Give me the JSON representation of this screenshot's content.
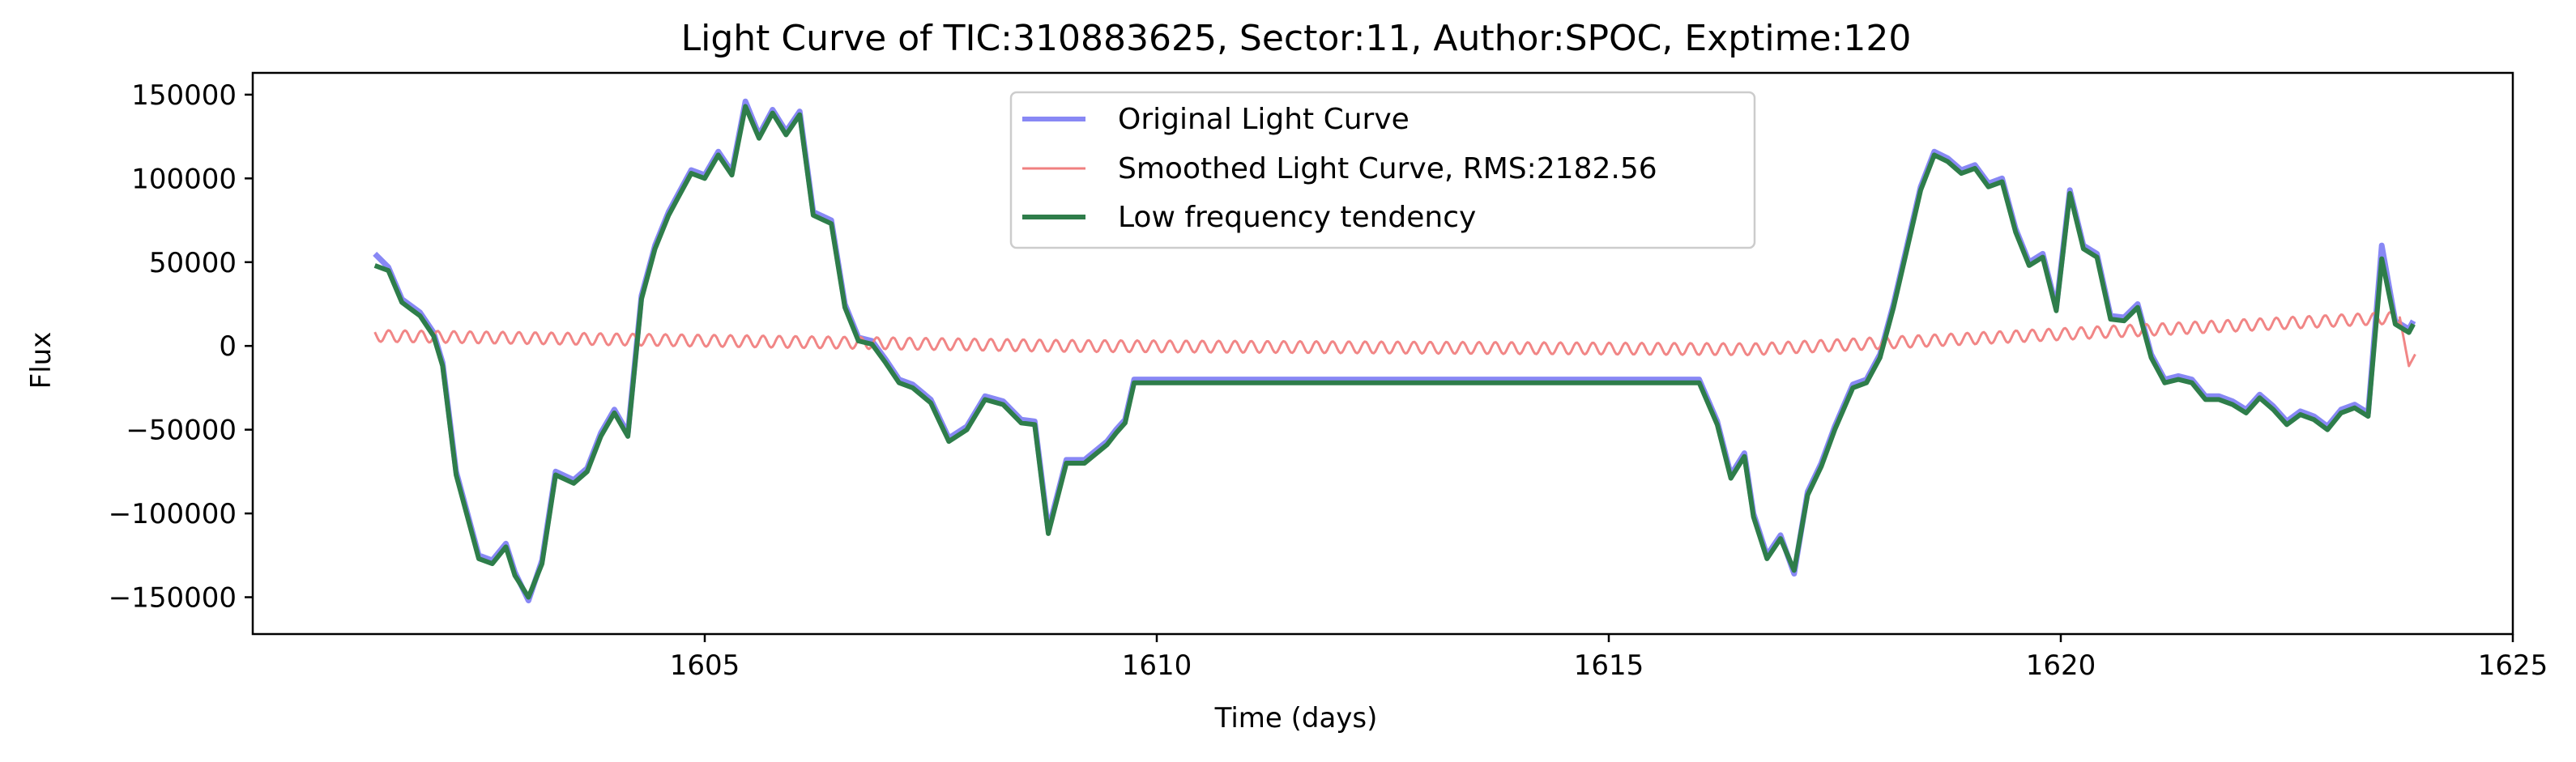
{
  "chart_data": {
    "type": "line",
    "title": "Light Curve of TIC:310883625, Sector:11, Author:SPOC, Exptime:120",
    "xlabel": "Time (days)",
    "ylabel": "Flux",
    "xlim": [
      1600.0,
      1625.0
    ],
    "ylim": [
      -172000,
      163000
    ],
    "xticks": [
      1605,
      1610,
      1615,
      1620,
      1625
    ],
    "yticks": [
      -150000,
      -100000,
      -50000,
      0,
      50000,
      100000,
      150000
    ],
    "xtick_labels": [
      "1605",
      "1610",
      "1615",
      "1620",
      "1625"
    ],
    "ytick_labels": [
      "−150000",
      "−100000",
      "−50000",
      "0",
      "50000",
      "100000",
      "150000"
    ],
    "grid": false,
    "legend_position": "top-center",
    "colors": {
      "original": "#7b7bf4",
      "smoothed": "#f08080",
      "trend": "#2e7d4a"
    },
    "series": [
      {
        "key": "original",
        "name": "Original Light Curve",
        "x": [
          1601.35,
          1601.5,
          1601.65,
          1601.85,
          1602.0,
          1602.1,
          1602.25,
          1602.5,
          1602.65,
          1602.8,
          1602.9,
          1603.05,
          1603.2,
          1603.35,
          1603.55,
          1603.7,
          1603.85,
          1604.0,
          1604.15,
          1604.3,
          1604.45,
          1604.6,
          1604.7,
          1604.85,
          1605.0,
          1605.15,
          1605.3,
          1605.45,
          1605.6,
          1605.75,
          1605.9,
          1606.05,
          1606.2,
          1606.4,
          1606.55,
          1606.7,
          1606.85,
          1607.0,
          1607.15,
          1607.3,
          1607.5,
          1607.7,
          1607.9,
          1608.1,
          1608.3,
          1608.5,
          1608.65,
          1608.8,
          1609.0,
          1609.2,
          1609.45,
          1609.55,
          1609.65,
          1609.75,
          1616.0,
          1616.2,
          1616.35,
          1616.5,
          1616.6,
          1616.75,
          1616.9,
          1617.05,
          1617.2,
          1617.35,
          1617.5,
          1617.7,
          1617.85,
          1618.0,
          1618.15,
          1618.3,
          1618.45,
          1618.6,
          1618.75,
          1618.9,
          1619.05,
          1619.2,
          1619.35,
          1619.5,
          1619.65,
          1619.8,
          1619.95,
          1620.1,
          1620.25,
          1620.4,
          1620.55,
          1620.7,
          1620.85,
          1621.0,
          1621.15,
          1621.3,
          1621.45,
          1621.6,
          1621.75,
          1621.9,
          1622.05,
          1622.2,
          1622.35,
          1622.5,
          1622.65,
          1622.8,
          1622.95,
          1623.1,
          1623.25,
          1623.4,
          1623.55,
          1623.7,
          1623.85,
          1623.9
        ],
        "y": [
          55000,
          47000,
          28000,
          20000,
          8000,
          -10000,
          -75000,
          -125000,
          -128000,
          -118000,
          -135000,
          -152000,
          -128000,
          -75000,
          -80000,
          -73000,
          -52000,
          -38000,
          -52000,
          30000,
          60000,
          80000,
          90000,
          105000,
          102000,
          116000,
          104000,
          146000,
          126000,
          141000,
          128000,
          140000,
          80000,
          75000,
          25000,
          5000,
          3000,
          -8000,
          -20000,
          -23000,
          -32000,
          -55000,
          -48000,
          -30000,
          -33000,
          -44000,
          -45000,
          -110000,
          -68000,
          -68000,
          -57000,
          -50000,
          -44000,
          -20000,
          -20000,
          -45000,
          -77000,
          -64000,
          -100000,
          -125000,
          -113000,
          -136000,
          -87000,
          -70000,
          -48000,
          -23000,
          -20000,
          -5000,
          25000,
          60000,
          95000,
          116000,
          112000,
          105000,
          108000,
          97000,
          100000,
          70000,
          50000,
          55000,
          23000,
          93000,
          60000,
          55000,
          18000,
          17000,
          25000,
          -5000,
          -20000,
          -18000,
          -20000,
          -30000,
          -30000,
          -33000,
          -38000,
          -29000,
          -36000,
          -45000,
          -39000,
          -42000,
          -48000,
          -38000,
          -35000,
          -40000,
          60000,
          15000,
          10000,
          15000
        ]
      },
      {
        "key": "smoothed",
        "name": "Smoothed Light Curve, RMS:2182.56",
        "x": [
          1601.35,
          1609.0,
          1616.6,
          1623.75,
          1623.85,
          1623.92
        ],
        "y": [
          6000,
          0,
          -2000,
          17000,
          -12000,
          -5000
        ]
      },
      {
        "key": "trend",
        "name": "Low frequency tendency",
        "x": [
          1601.35,
          1601.5,
          1601.65,
          1601.85,
          1602.0,
          1602.1,
          1602.25,
          1602.5,
          1602.65,
          1602.8,
          1602.9,
          1603.05,
          1603.2,
          1603.35,
          1603.55,
          1603.7,
          1603.85,
          1604.0,
          1604.15,
          1604.3,
          1604.45,
          1604.6,
          1604.7,
          1604.85,
          1605.0,
          1605.15,
          1605.3,
          1605.45,
          1605.6,
          1605.75,
          1605.9,
          1606.05,
          1606.2,
          1606.4,
          1606.55,
          1606.7,
          1606.85,
          1607.0,
          1607.15,
          1607.3,
          1607.5,
          1607.7,
          1607.9,
          1608.1,
          1608.3,
          1608.5,
          1608.65,
          1608.8,
          1609.0,
          1609.2,
          1609.45,
          1609.55,
          1609.65,
          1609.75,
          1616.0,
          1616.2,
          1616.35,
          1616.5,
          1616.6,
          1616.75,
          1616.9,
          1617.05,
          1617.2,
          1617.35,
          1617.5,
          1617.7,
          1617.85,
          1618.0,
          1618.15,
          1618.3,
          1618.45,
          1618.6,
          1618.75,
          1618.9,
          1619.05,
          1619.2,
          1619.35,
          1619.5,
          1619.65,
          1619.8,
          1619.95,
          1620.1,
          1620.25,
          1620.4,
          1620.55,
          1620.7,
          1620.85,
          1621.0,
          1621.15,
          1621.3,
          1621.45,
          1621.6,
          1621.75,
          1621.9,
          1622.05,
          1622.2,
          1622.35,
          1622.5,
          1622.65,
          1622.8,
          1622.95,
          1623.1,
          1623.25,
          1623.4,
          1623.55,
          1623.7,
          1623.85,
          1623.9
        ],
        "y": [
          48000,
          45000,
          26000,
          18000,
          6000,
          -12000,
          -77000,
          -127000,
          -130000,
          -120000,
          -137000,
          -150000,
          -130000,
          -77000,
          -82000,
          -75000,
          -54000,
          -40000,
          -54000,
          28000,
          58000,
          78000,
          88000,
          103000,
          100000,
          114000,
          102000,
          143000,
          124000,
          139000,
          126000,
          138000,
          78000,
          73000,
          23000,
          3000,
          1000,
          -10000,
          -22000,
          -25000,
          -34000,
          -57000,
          -50000,
          -32000,
          -35000,
          -46000,
          -47000,
          -112000,
          -70000,
          -70000,
          -59000,
          -52000,
          -46000,
          -22000,
          -22000,
          -47000,
          -79000,
          -66000,
          -102000,
          -127000,
          -115000,
          -134000,
          -89000,
          -72000,
          -50000,
          -25000,
          -22000,
          -7000,
          23000,
          58000,
          93000,
          114000,
          110000,
          103000,
          106000,
          95000,
          98000,
          68000,
          48000,
          53000,
          21000,
          91000,
          58000,
          53000,
          16000,
          15000,
          23000,
          -7000,
          -22000,
          -20000,
          -22000,
          -32000,
          -32000,
          -35000,
          -40000,
          -31000,
          -38000,
          -47000,
          -41000,
          -44000,
          -50000,
          -40000,
          -37000,
          -42000,
          52000,
          13000,
          8000,
          13000
        ]
      }
    ]
  }
}
